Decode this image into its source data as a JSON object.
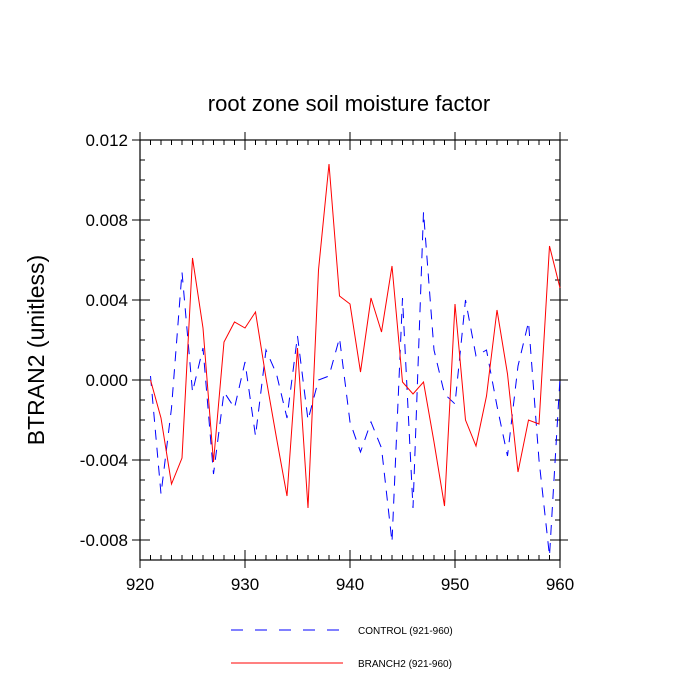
{
  "chart_data": {
    "type": "line",
    "title": "root zone soil moisture factor",
    "xlabel": "",
    "ylabel": "BTRAN2  (unitless)",
    "xlim": [
      920,
      960
    ],
    "ylim": [
      -0.009,
      0.012
    ],
    "xticks": [
      920,
      930,
      940,
      950,
      960
    ],
    "xtick_labels": [
      "920",
      "930",
      "940",
      "950",
      "960"
    ],
    "yticks": [
      -0.008,
      -0.004,
      0.0,
      0.004,
      0.008,
      0.012
    ],
    "ytick_labels": [
      "-0.008",
      "-0.004",
      "0.000",
      "0.004",
      "0.008",
      "0.012"
    ],
    "grid": false,
    "legend_position": "bottom-center",
    "x": [
      921,
      922,
      923,
      924,
      925,
      926,
      927,
      928,
      929,
      930,
      931,
      932,
      933,
      934,
      935,
      936,
      937,
      938,
      939,
      940,
      941,
      942,
      943,
      944,
      945,
      946,
      947,
      948,
      949,
      950,
      951,
      952,
      953,
      954,
      955,
      956,
      957,
      958,
      959,
      960
    ],
    "series": [
      {
        "name": "CONTROL (921-960)",
        "color": "#0000ff",
        "style": "dashed",
        "values": [
          0.0002,
          -0.0057,
          -0.0014,
          0.0054,
          -0.0006,
          0.0016,
          -0.0047,
          -0.0006,
          -0.0014,
          0.0009,
          -0.0028,
          0.0015,
          0.0003,
          -0.0019,
          0.0022,
          -0.002,
          0.0,
          0.0002,
          0.0021,
          -0.0021,
          -0.0036,
          -0.0021,
          -0.0034,
          -0.0081,
          0.0041,
          -0.0064,
          0.0084,
          0.0015,
          -0.0007,
          -0.0012,
          0.004,
          0.0012,
          0.0015,
          -0.0013,
          -0.0038,
          0.0007,
          0.0029,
          -0.004,
          -0.0088,
          0.0001
        ]
      },
      {
        "name": "BRANCH2 (921-960)",
        "color": "#ff0000",
        "style": "solid",
        "values": [
          0.0,
          -0.0019,
          -0.0052,
          -0.0039,
          0.0061,
          0.0026,
          -0.0041,
          0.0019,
          0.0029,
          0.0026,
          0.0034,
          0.0001,
          -0.0029,
          -0.0058,
          0.0016,
          -0.0064,
          0.0055,
          0.0108,
          0.0042,
          0.0038,
          0.0004,
          0.0041,
          0.0024,
          0.0057,
          -0.0001,
          -0.0007,
          -0.0001,
          -0.0031,
          -0.0063,
          0.0038,
          -0.002,
          -0.0033,
          -0.0008,
          0.0035,
          0.0003,
          -0.0046,
          -0.002,
          -0.0022,
          0.0067,
          0.0046
        ]
      }
    ]
  }
}
